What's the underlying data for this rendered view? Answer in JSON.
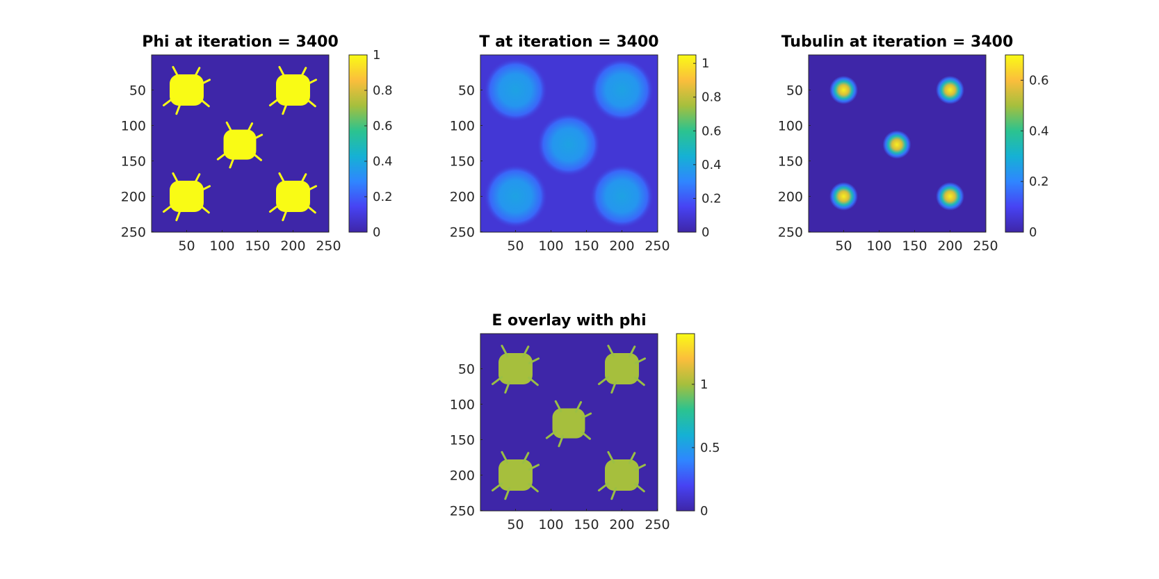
{
  "figure": {
    "background": "#ffffff"
  },
  "colormap": [
    "#3e26a8",
    "#4743f3",
    "#2f86ff",
    "#15b1d4",
    "#2cc38f",
    "#a6bf3d",
    "#fbbe3c",
    "#f9fb15"
  ],
  "chart_data": [
    {
      "type": "heatmap",
      "title": "Phi at iteration = 3400",
      "grid_size": [
        250,
        250
      ],
      "xticks": [
        50,
        100,
        150,
        200,
        250
      ],
      "yticks": [
        50,
        100,
        150,
        200,
        250
      ],
      "xlim": [
        0.5,
        250.5
      ],
      "ylim": [
        0.5,
        250.5
      ],
      "yaxis_reversed": true,
      "clim": [
        0,
        1
      ],
      "colorbar_ticks": [
        0,
        0.2,
        0.4,
        0.6,
        0.8,
        1
      ],
      "field": "binary",
      "blobs": [
        {
          "cx": 50,
          "cy": 50,
          "r": 24
        },
        {
          "cx": 200,
          "cy": 50,
          "r": 24
        },
        {
          "cx": 125,
          "cy": 127,
          "r": 23
        },
        {
          "cx": 50,
          "cy": 200,
          "r": 24
        },
        {
          "cx": 200,
          "cy": 200,
          "r": 24
        }
      ]
    },
    {
      "type": "heatmap",
      "title": "T at iteration = 3400",
      "grid_size": [
        250,
        250
      ],
      "xticks": [
        50,
        100,
        150,
        200,
        250
      ],
      "yticks": [
        50,
        100,
        150,
        200,
        250
      ],
      "xlim": [
        0.5,
        250.5
      ],
      "ylim": [
        0.5,
        250.5
      ],
      "yaxis_reversed": true,
      "clim": [
        0,
        1.05
      ],
      "colorbar_ticks": [
        0,
        0.2,
        0.4,
        0.6,
        0.8,
        1
      ],
      "field": "diffuse",
      "blobs": [
        {
          "cx": 50,
          "cy": 50,
          "r": 45
        },
        {
          "cx": 200,
          "cy": 50,
          "r": 45
        },
        {
          "cx": 125,
          "cy": 127,
          "r": 45
        },
        {
          "cx": 50,
          "cy": 200,
          "r": 45
        },
        {
          "cx": 200,
          "cy": 200,
          "r": 45
        }
      ]
    },
    {
      "type": "heatmap",
      "title": "Tubulin at iteration = 3400",
      "grid_size": [
        250,
        250
      ],
      "xticks": [
        50,
        100,
        150,
        200,
        250
      ],
      "yticks": [
        50,
        100,
        150,
        200,
        250
      ],
      "xlim": [
        0.5,
        250.5
      ],
      "ylim": [
        0.5,
        250.5
      ],
      "yaxis_reversed": true,
      "clim": [
        0,
        0.7
      ],
      "colorbar_ticks": [
        0,
        0.2,
        0.4,
        0.6
      ],
      "field": "gaussian",
      "peak": 0.68,
      "blobs": [
        {
          "cx": 50,
          "cy": 50,
          "r": 20
        },
        {
          "cx": 200,
          "cy": 50,
          "r": 20
        },
        {
          "cx": 125,
          "cy": 127,
          "r": 20
        },
        {
          "cx": 50,
          "cy": 200,
          "r": 20
        },
        {
          "cx": 200,
          "cy": 200,
          "r": 20
        }
      ]
    },
    {
      "type": "heatmap",
      "title": "E overlay with phi",
      "grid_size": [
        250,
        250
      ],
      "xticks": [
        50,
        100,
        150,
        200,
        250
      ],
      "yticks": [
        50,
        100,
        150,
        200,
        250
      ],
      "xlim": [
        0.5,
        250.5
      ],
      "ylim": [
        0.5,
        250.5
      ],
      "yaxis_reversed": true,
      "clim": [
        0,
        1.4
      ],
      "colorbar_ticks": [
        0,
        0.5,
        1
      ],
      "field": "binary",
      "blobs": [
        {
          "cx": 50,
          "cy": 50,
          "r": 24
        },
        {
          "cx": 200,
          "cy": 50,
          "r": 24
        },
        {
          "cx": 125,
          "cy": 127,
          "r": 23
        },
        {
          "cx": 50,
          "cy": 200,
          "r": 24
        },
        {
          "cx": 200,
          "cy": 200,
          "r": 24
        }
      ]
    }
  ]
}
